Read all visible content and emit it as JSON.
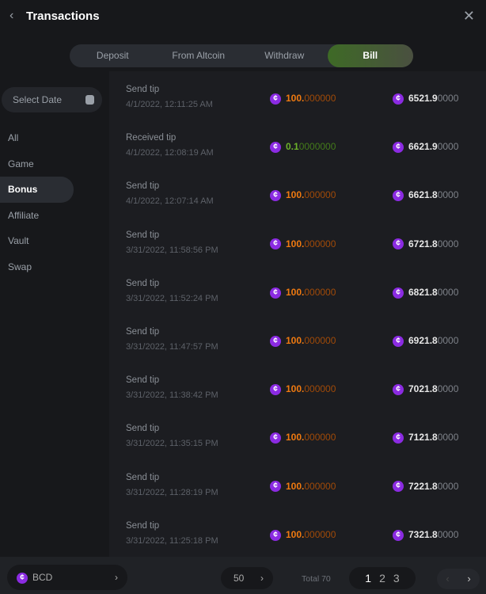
{
  "header": {
    "title": "Transactions",
    "back_icon": "chevron-left-icon",
    "close_icon": "close-icon"
  },
  "tabs": [
    {
      "label": "Deposit"
    },
    {
      "label": "From Altcoin"
    },
    {
      "label": "Withdraw"
    },
    {
      "label": "Bill",
      "active": true
    }
  ],
  "date_picker": {
    "placeholder": "Select Date"
  },
  "sidebar": {
    "items": [
      {
        "label": "All"
      },
      {
        "label": "Game"
      },
      {
        "label": "Bonus",
        "active": true
      },
      {
        "label": "Affiliate"
      },
      {
        "label": "Vault"
      },
      {
        "label": "Swap"
      }
    ]
  },
  "colors": {
    "send": "#f07a10",
    "send_dim": "#a04a08",
    "received": "#6cb22a",
    "received_dim": "#437a1a",
    "coin": "#8b2be2"
  },
  "rows": [
    {
      "type": "Send tip",
      "date": "4/1/2022, 12:11:25 AM",
      "amt_main": "100.",
      "amt_rest": "000000",
      "kind": "send",
      "bal_main": "6521.9",
      "bal_rest": "0000"
    },
    {
      "type": "Received tip",
      "date": "4/1/2022, 12:08:19 AM",
      "amt_main": "0.1",
      "amt_rest": "0000000",
      "kind": "received",
      "bal_main": "6621.9",
      "bal_rest": "0000"
    },
    {
      "type": "Send tip",
      "date": "4/1/2022, 12:07:14 AM",
      "amt_main": "100.",
      "amt_rest": "000000",
      "kind": "send",
      "bal_main": "6621.8",
      "bal_rest": "0000"
    },
    {
      "type": "Send tip",
      "date": "3/31/2022, 11:58:56 PM",
      "amt_main": "100.",
      "amt_rest": "000000",
      "kind": "send",
      "bal_main": "6721.8",
      "bal_rest": "0000"
    },
    {
      "type": "Send tip",
      "date": "3/31/2022, 11:52:24 PM",
      "amt_main": "100.",
      "amt_rest": "000000",
      "kind": "send",
      "bal_main": "6821.8",
      "bal_rest": "0000"
    },
    {
      "type": "Send tip",
      "date": "3/31/2022, 11:47:57 PM",
      "amt_main": "100.",
      "amt_rest": "000000",
      "kind": "send",
      "bal_main": "6921.8",
      "bal_rest": "0000"
    },
    {
      "type": "Send tip",
      "date": "3/31/2022, 11:38:42 PM",
      "amt_main": "100.",
      "amt_rest": "000000",
      "kind": "send",
      "bal_main": "7021.8",
      "bal_rest": "0000"
    },
    {
      "type": "Send tip",
      "date": "3/31/2022, 11:35:15 PM",
      "amt_main": "100.",
      "amt_rest": "000000",
      "kind": "send",
      "bal_main": "7121.8",
      "bal_rest": "0000"
    },
    {
      "type": "Send tip",
      "date": "3/31/2022, 11:28:19 PM",
      "amt_main": "100.",
      "amt_rest": "000000",
      "kind": "send",
      "bal_main": "7221.8",
      "bal_rest": "0000"
    },
    {
      "type": "Send tip",
      "date": "3/31/2022, 11:25:18 PM",
      "amt_main": "100.",
      "amt_rest": "000000",
      "kind": "send",
      "bal_main": "7321.8",
      "bal_rest": "0000"
    }
  ],
  "footer": {
    "currency": "BCD",
    "per_page": "50",
    "total": "Total 70",
    "pages": [
      "1",
      "2",
      "3"
    ],
    "current_page": "1"
  }
}
